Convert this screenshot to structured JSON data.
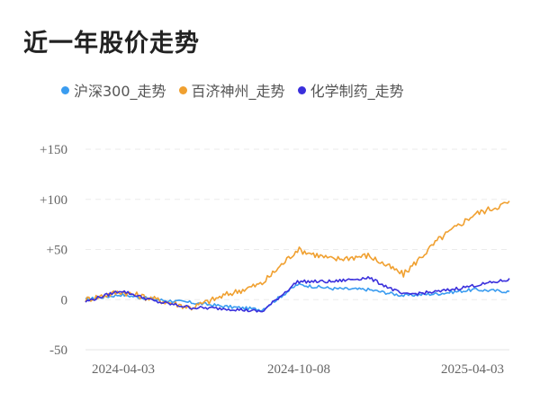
{
  "title": "近一年股价走势",
  "legend": [
    {
      "label": "沪深300_走势",
      "color": "#3a9cf0"
    },
    {
      "label": "百济神州_走势",
      "color": "#f0a030"
    },
    {
      "label": "化学制药_走势",
      "color": "#3a2fdc"
    }
  ],
  "chart_data": {
    "type": "line",
    "title": "近一年股价走势",
    "xlabel": "",
    "ylabel": "",
    "ylim": [
      -50,
      150
    ],
    "yticks": [
      "+150",
      "+100",
      "+50",
      "0",
      "-50"
    ],
    "xticks": [
      "2024-04-03",
      "2024-10-08",
      "2025-04-03"
    ],
    "grid": true,
    "legend_position": "top",
    "x": [
      "2024-04-03",
      "2024-05",
      "2024-06",
      "2024-07",
      "2024-08",
      "2024-09",
      "2024-10-08",
      "2024-11",
      "2024-12",
      "2025-01",
      "2025-02",
      "2025-03",
      "2025-04-03"
    ],
    "series": [
      {
        "name": "沪深300_走势",
        "color": "#3a9cf0",
        "values": [
          0,
          5,
          0,
          -3,
          -7,
          -10,
          15,
          11,
          10,
          4,
          6,
          10,
          8
        ]
      },
      {
        "name": "百济神州_走势",
        "color": "#f0a030",
        "values": [
          0,
          8,
          0,
          -8,
          5,
          16,
          50,
          40,
          44,
          25,
          60,
          85,
          97
        ]
      },
      {
        "name": "化学制药_走势",
        "color": "#3a2fdc",
        "values": [
          -2,
          9,
          -2,
          -8,
          -9,
          -12,
          18,
          18,
          22,
          5,
          8,
          14,
          20
        ]
      }
    ]
  }
}
